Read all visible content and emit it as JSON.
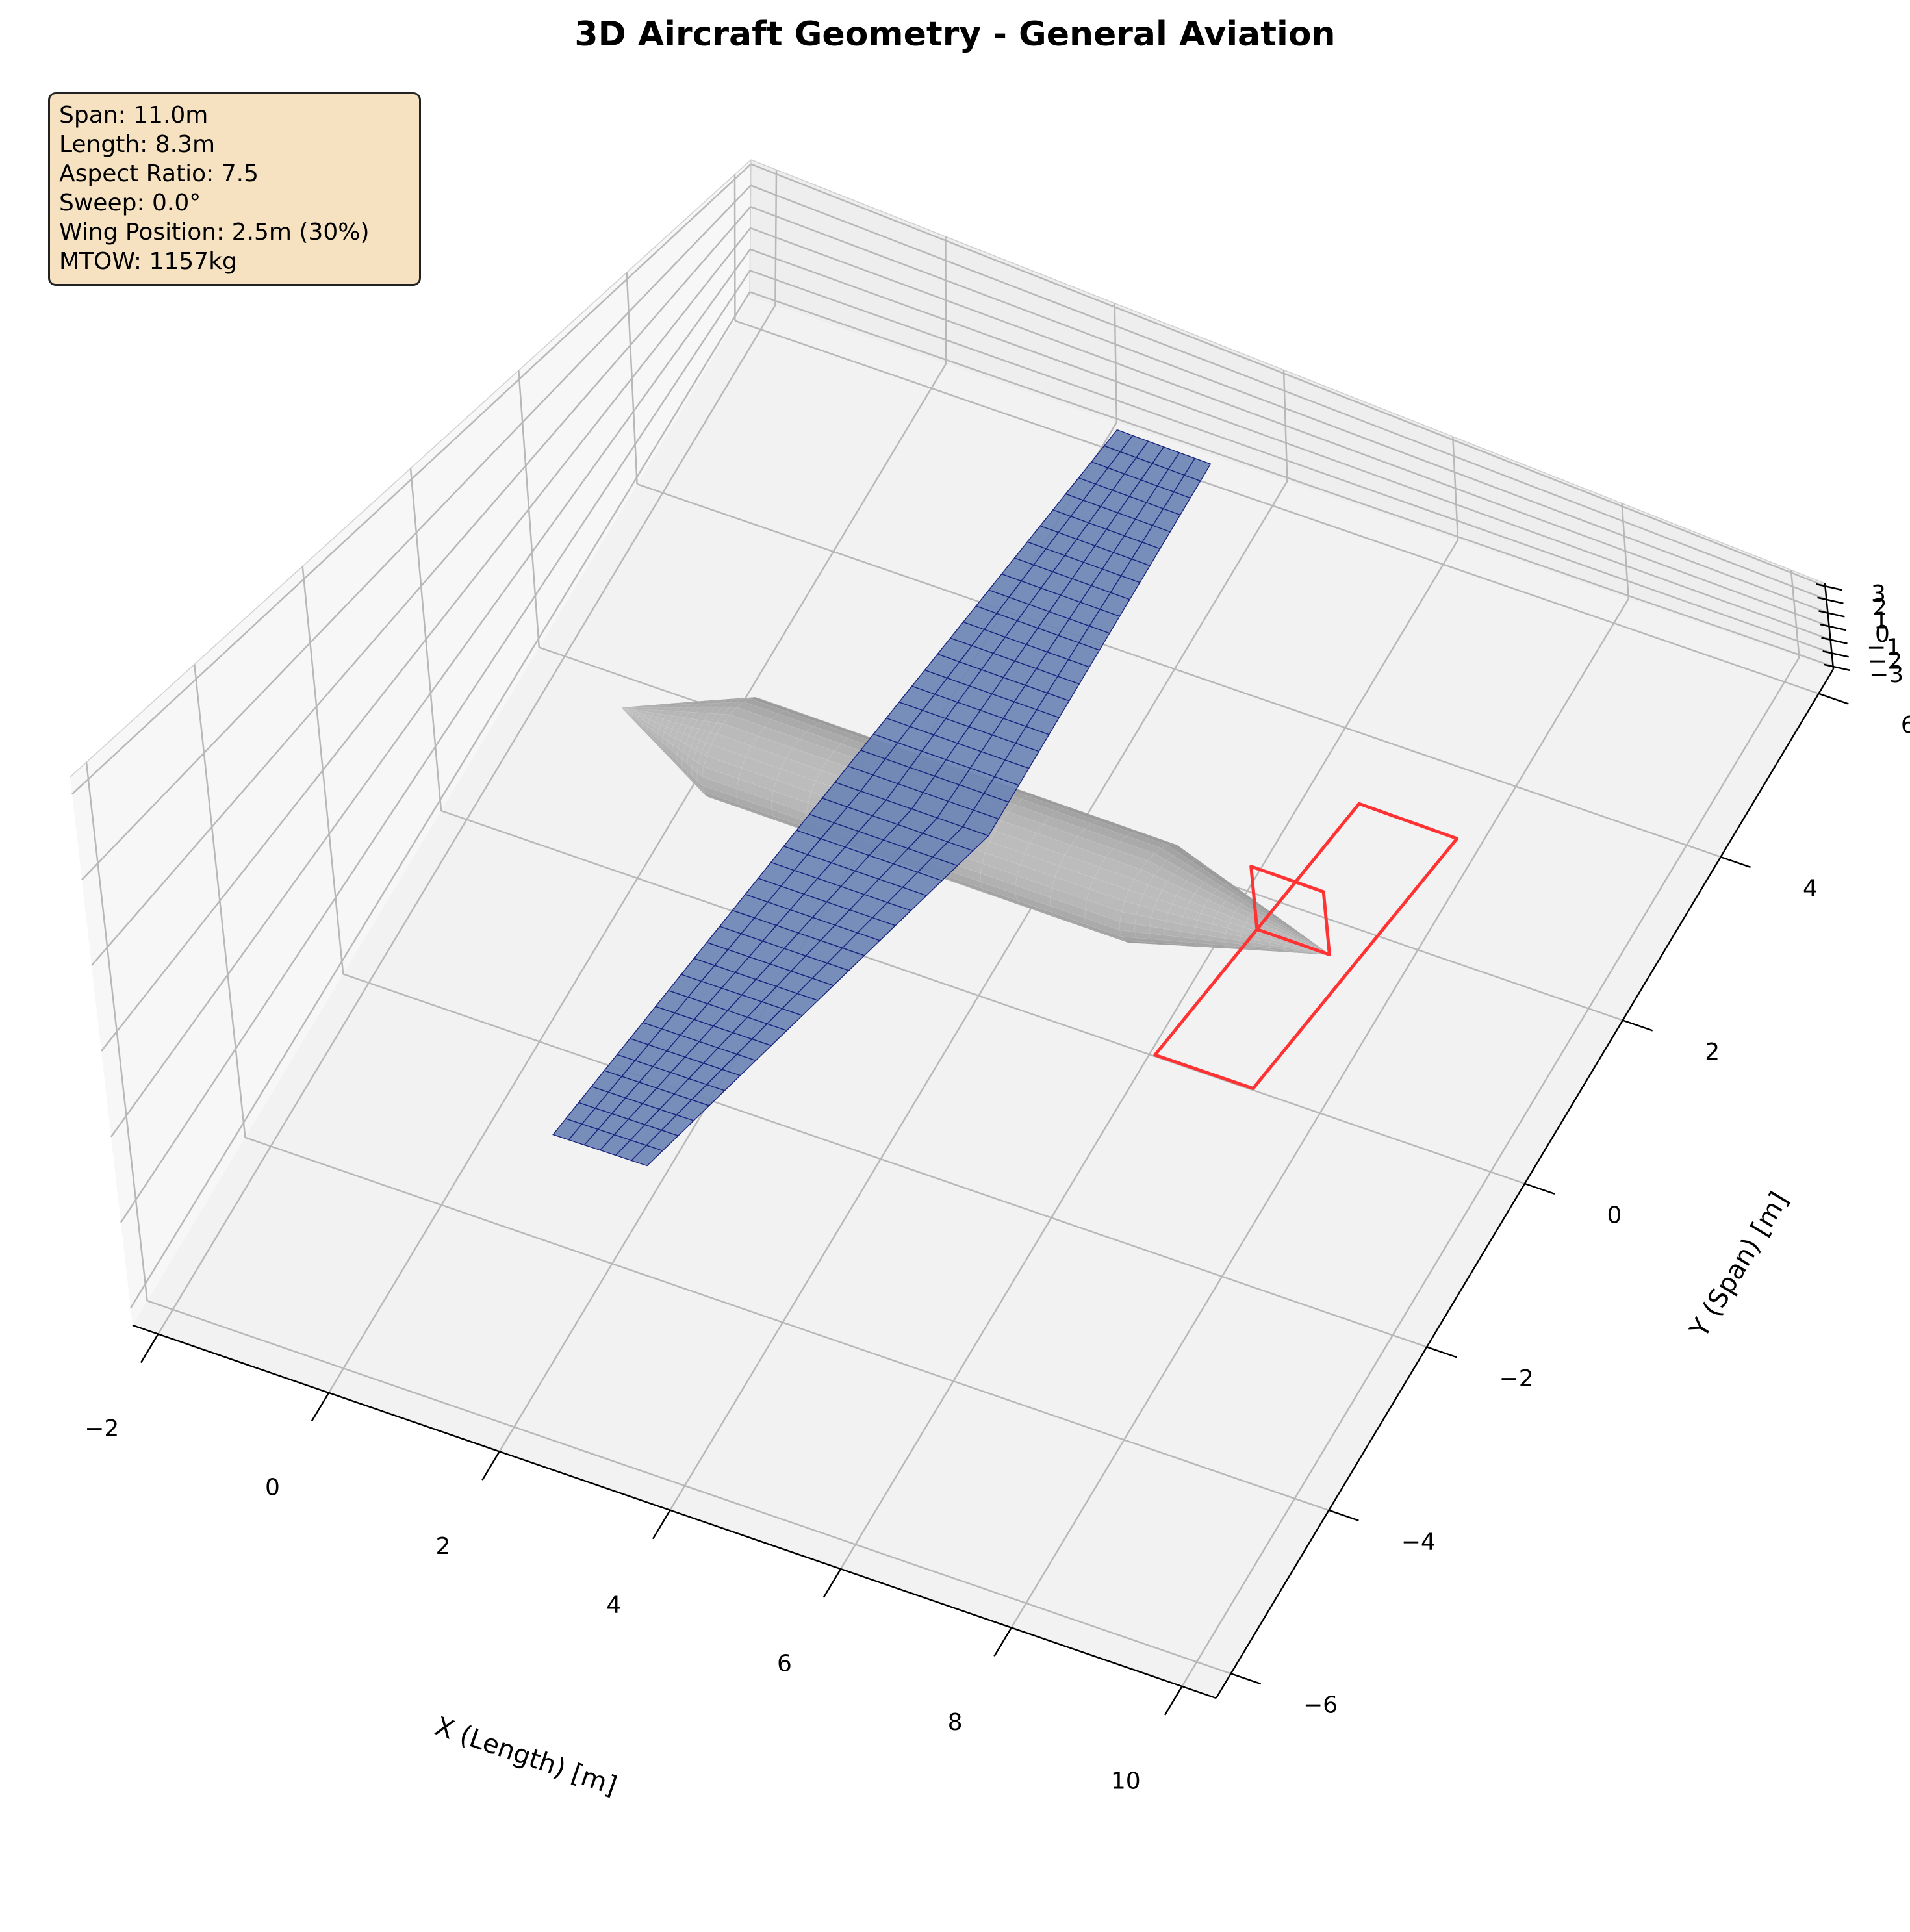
{
  "chart_data": {
    "type": "3d-surface",
    "title": "3D Aircraft Geometry - General Aviation",
    "xlabel": "X (Length) [m]",
    "ylabel": "Y (Span) [m]",
    "zlabel": "",
    "xlim": [
      -2.3,
      10.4
    ],
    "ylim": [
      -6.3,
      6.3
    ],
    "zlim": [
      -3.2,
      3.2
    ],
    "x_ticks": [
      "−2",
      "0",
      "2",
      "4",
      "6",
      "8",
      "10"
    ],
    "x_tick_values": [
      -2,
      0,
      2,
      4,
      6,
      8,
      10
    ],
    "y_ticks": [
      "−6",
      "−4",
      "−2",
      "0",
      "2",
      "4",
      "6"
    ],
    "y_tick_values": [
      -6,
      -4,
      -2,
      0,
      2,
      4,
      6
    ],
    "z_ticks": [
      "−3",
      "−2",
      "−1",
      "0",
      "1",
      "2",
      "3"
    ],
    "z_tick_values": [
      -3,
      -2,
      -1,
      0,
      1,
      2,
      3
    ],
    "grid": true,
    "info_lines": [
      "Span: 11.0m",
      "Length: 8.3m",
      "Aspect Ratio: 7.5",
      "Sweep: 0.0°",
      "Wing Position: 2.5m (30%)",
      "MTOW: 1157kg"
    ],
    "fuselage": {
      "nose_x": 0.0,
      "cylinder_start_x": 1.3,
      "cylinder_end_x": 6.2,
      "tail_x": 8.3,
      "radius": 0.6,
      "color": "#a0a0a0"
    },
    "wing": {
      "leading_edge_x": 2.5,
      "root_chord": 1.8,
      "tip_chord": 1.1,
      "half_span": 5.5,
      "color": "#6c86b5",
      "edge_color": "#1a237e"
    },
    "horizontal_tail": {
      "x": [
        7.45,
        8.6
      ],
      "half_span": 2.0,
      "color": "#ff3333"
    },
    "vertical_tail": {
      "x": [
        7.45,
        8.3
      ],
      "height": 1.2,
      "color": "#ff3333"
    }
  }
}
